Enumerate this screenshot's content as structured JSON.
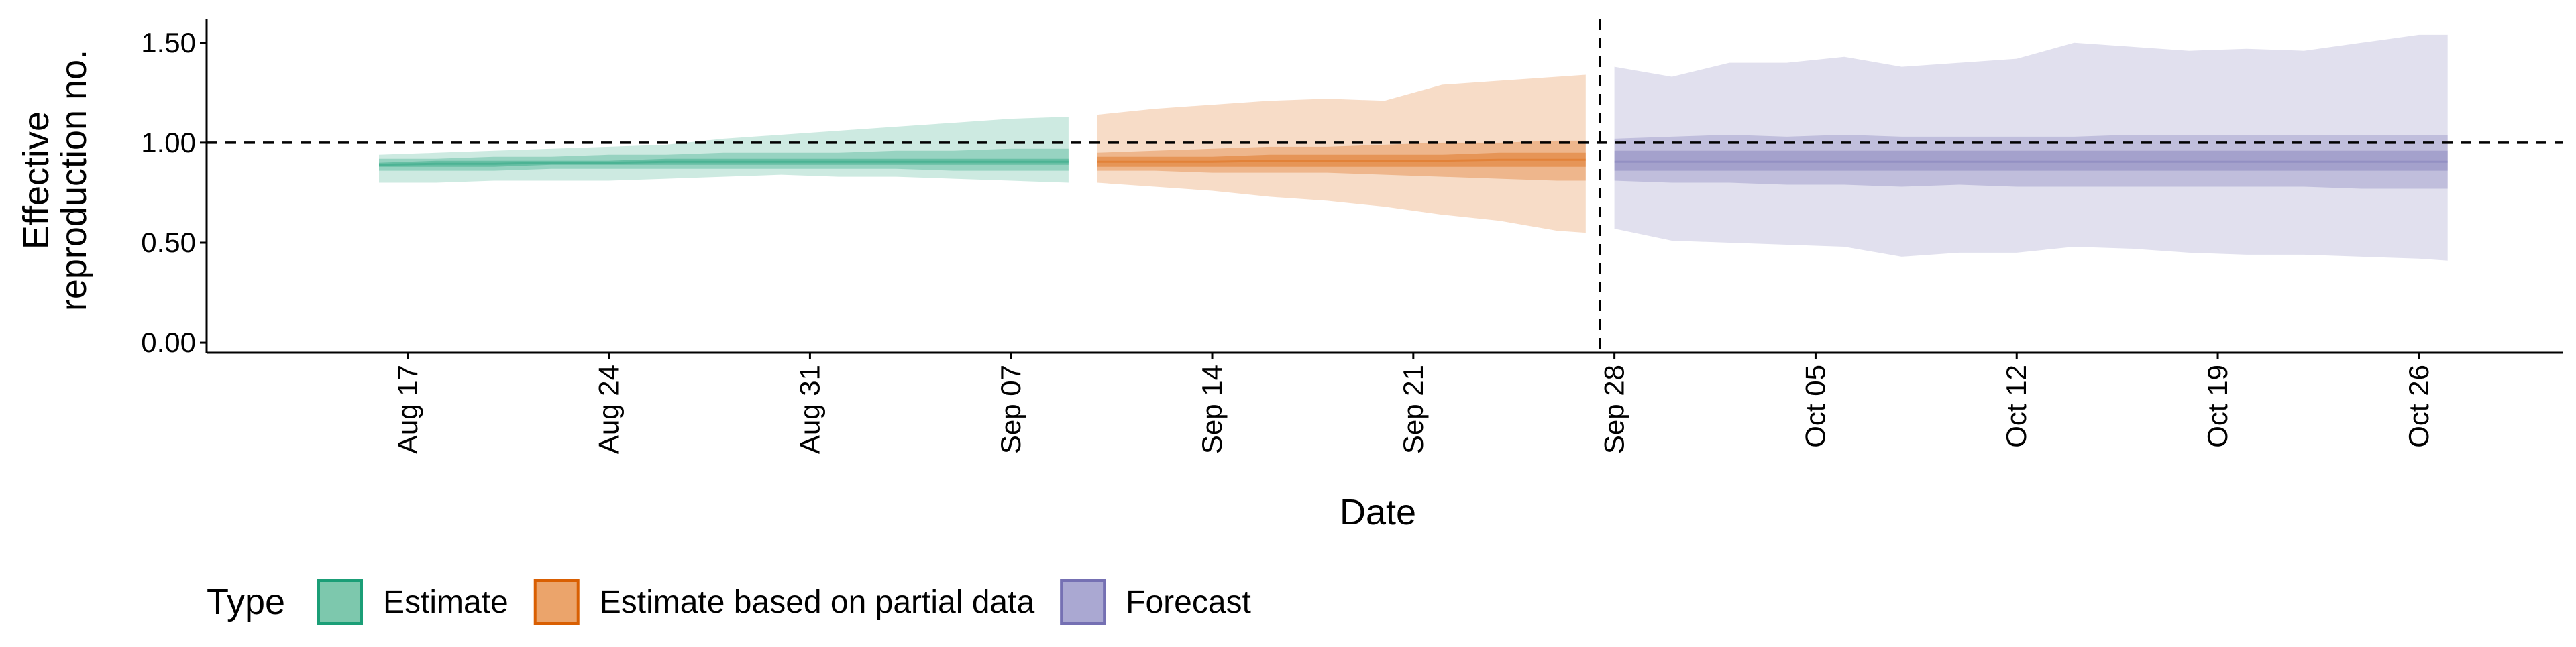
{
  "chart_data": {
    "type": "area",
    "title": "",
    "xlabel": "Date",
    "ylabel_lines": [
      "Effective",
      "reproduction no."
    ],
    "ylim": [
      -0.05,
      1.62
    ],
    "yticks": [
      {
        "value": 0.0,
        "label": "0.00"
      },
      {
        "value": 0.5,
        "label": "0.50"
      },
      {
        "value": 1.0,
        "label": "1.00"
      },
      {
        "value": 1.5,
        "label": "1.50"
      }
    ],
    "xlim": [
      "2020-08-10",
      "2020-10-31"
    ],
    "xticks": [
      {
        "date": "2020-08-17",
        "label": "Aug 17"
      },
      {
        "date": "2020-08-24",
        "label": "Aug 24"
      },
      {
        "date": "2020-08-31",
        "label": "Aug 31"
      },
      {
        "date": "2020-09-07",
        "label": "Sep 07"
      },
      {
        "date": "2020-09-14",
        "label": "Sep 14"
      },
      {
        "date": "2020-09-21",
        "label": "Sep 21"
      },
      {
        "date": "2020-09-28",
        "label": "Sep 28"
      },
      {
        "date": "2020-10-05",
        "label": "Oct 05"
      },
      {
        "date": "2020-10-12",
        "label": "Oct 12"
      },
      {
        "date": "2020-10-19",
        "label": "Oct 19"
      },
      {
        "date": "2020-10-26",
        "label": "Oct 26"
      }
    ],
    "hline": 1.0,
    "vline": "2020-09-27",
    "legend": {
      "title": "Type",
      "position": "bottom-left",
      "entries": [
        {
          "label": "Estimate",
          "fill": "#7dc8ad",
          "stroke": "#1b9e77"
        },
        {
          "label": "Estimate based on partial data",
          "fill": "#eba46b",
          "stroke": "#d95f02"
        },
        {
          "label": "Forecast",
          "fill": "#aaa8d2",
          "stroke": "#7570b3"
        }
      ]
    },
    "series": [
      {
        "name": "Estimate",
        "color": "#1b9e77",
        "x": [
          "2020-08-16",
          "2020-08-18",
          "2020-08-20",
          "2020-08-22",
          "2020-08-24",
          "2020-08-26",
          "2020-08-28",
          "2020-08-30",
          "2020-09-01",
          "2020-09-03",
          "2020-09-05",
          "2020-09-07",
          "2020-09-09"
        ],
        "median": [
          0.89,
          0.895,
          0.895,
          0.9,
          0.9,
          0.905,
          0.905,
          0.905,
          0.905,
          0.905,
          0.905,
          0.905,
          0.905
        ],
        "ci90": [
          [
            0.8,
            0.94
          ],
          [
            0.8,
            0.95
          ],
          [
            0.81,
            0.96
          ],
          [
            0.81,
            0.97
          ],
          [
            0.81,
            0.98
          ],
          [
            0.82,
            0.99
          ],
          [
            0.83,
            1.02
          ],
          [
            0.84,
            1.04
          ],
          [
            0.83,
            1.06
          ],
          [
            0.83,
            1.08
          ],
          [
            0.82,
            1.1
          ],
          [
            0.81,
            1.12
          ],
          [
            0.8,
            1.13
          ]
        ],
        "ci50": [
          [
            0.86,
            0.92
          ],
          [
            0.86,
            0.92
          ],
          [
            0.86,
            0.93
          ],
          [
            0.87,
            0.93
          ],
          [
            0.87,
            0.94
          ],
          [
            0.87,
            0.94
          ],
          [
            0.87,
            0.95
          ],
          [
            0.87,
            0.95
          ],
          [
            0.87,
            0.95
          ],
          [
            0.87,
            0.96
          ],
          [
            0.86,
            0.96
          ],
          [
            0.86,
            0.97
          ],
          [
            0.86,
            0.97
          ]
        ],
        "ci20": [
          [
            0.88,
            0.9
          ],
          [
            0.88,
            0.91
          ],
          [
            0.88,
            0.91
          ],
          [
            0.89,
            0.91
          ],
          [
            0.89,
            0.91
          ],
          [
            0.89,
            0.92
          ],
          [
            0.89,
            0.92
          ],
          [
            0.89,
            0.92
          ],
          [
            0.89,
            0.92
          ],
          [
            0.89,
            0.92
          ],
          [
            0.89,
            0.92
          ],
          [
            0.89,
            0.92
          ],
          [
            0.89,
            0.92
          ]
        ]
      },
      {
        "name": "Estimate based on partial data",
        "color": "#d95f02",
        "x": [
          "2020-09-10",
          "2020-09-12",
          "2020-09-14",
          "2020-09-16",
          "2020-09-18",
          "2020-09-20",
          "2020-09-22",
          "2020-09-24",
          "2020-09-26",
          "2020-09-27"
        ],
        "median": [
          0.905,
          0.905,
          0.905,
          0.91,
          0.91,
          0.91,
          0.91,
          0.915,
          0.915,
          0.915
        ],
        "ci90": [
          [
            0.8,
            1.14
          ],
          [
            0.78,
            1.17
          ],
          [
            0.76,
            1.19
          ],
          [
            0.73,
            1.21
          ],
          [
            0.71,
            1.22
          ],
          [
            0.68,
            1.21
          ],
          [
            0.64,
            1.29
          ],
          [
            0.61,
            1.31
          ],
          [
            0.56,
            1.33
          ],
          [
            0.55,
            1.34
          ]
        ],
        "ci50": [
          [
            0.86,
            0.95
          ],
          [
            0.86,
            0.96
          ],
          [
            0.85,
            0.97
          ],
          [
            0.85,
            0.98
          ],
          [
            0.85,
            0.98
          ],
          [
            0.84,
            0.99
          ],
          [
            0.83,
            1.0
          ],
          [
            0.82,
            1.0
          ],
          [
            0.81,
            1.01
          ],
          [
            0.81,
            1.01
          ]
        ],
        "ci20": [
          [
            0.88,
            0.93
          ],
          [
            0.88,
            0.93
          ],
          [
            0.88,
            0.93
          ],
          [
            0.88,
            0.94
          ],
          [
            0.88,
            0.94
          ],
          [
            0.88,
            0.94
          ],
          [
            0.88,
            0.94
          ],
          [
            0.88,
            0.95
          ],
          [
            0.88,
            0.95
          ],
          [
            0.88,
            0.95
          ]
        ]
      },
      {
        "name": "Forecast",
        "color": "#7570b3",
        "x": [
          "2020-09-28",
          "2020-09-30",
          "2020-10-02",
          "2020-10-04",
          "2020-10-06",
          "2020-10-08",
          "2020-10-10",
          "2020-10-12",
          "2020-10-14",
          "2020-10-16",
          "2020-10-18",
          "2020-10-20",
          "2020-10-22",
          "2020-10-24",
          "2020-10-26",
          "2020-10-27"
        ],
        "median": [
          0.905,
          0.905,
          0.905,
          0.905,
          0.905,
          0.905,
          0.905,
          0.905,
          0.905,
          0.905,
          0.905,
          0.905,
          0.905,
          0.905,
          0.905,
          0.905
        ],
        "ci90": [
          [
            0.57,
            1.38
          ],
          [
            0.51,
            1.33
          ],
          [
            0.5,
            1.4
          ],
          [
            0.49,
            1.4
          ],
          [
            0.48,
            1.43
          ],
          [
            0.43,
            1.38
          ],
          [
            0.45,
            1.4
          ],
          [
            0.45,
            1.42
          ],
          [
            0.48,
            1.5
          ],
          [
            0.47,
            1.48
          ],
          [
            0.45,
            1.46
          ],
          [
            0.44,
            1.47
          ],
          [
            0.44,
            1.46
          ],
          [
            0.43,
            1.5
          ],
          [
            0.42,
            1.54
          ],
          [
            0.41,
            1.54
          ]
        ],
        "ci50": [
          [
            0.81,
            1.02
          ],
          [
            0.8,
            1.03
          ],
          [
            0.8,
            1.04
          ],
          [
            0.79,
            1.03
          ],
          [
            0.79,
            1.04
          ],
          [
            0.78,
            1.03
          ],
          [
            0.79,
            1.03
          ],
          [
            0.78,
            1.03
          ],
          [
            0.78,
            1.03
          ],
          [
            0.78,
            1.04
          ],
          [
            0.78,
            1.04
          ],
          [
            0.78,
            1.04
          ],
          [
            0.78,
            1.04
          ],
          [
            0.77,
            1.04
          ],
          [
            0.77,
            1.04
          ],
          [
            0.77,
            1.04
          ]
        ],
        "ci20": [
          [
            0.86,
            0.96
          ],
          [
            0.86,
            0.96
          ],
          [
            0.86,
            0.96
          ],
          [
            0.86,
            0.96
          ],
          [
            0.86,
            0.96
          ],
          [
            0.86,
            0.96
          ],
          [
            0.86,
            0.96
          ],
          [
            0.86,
            0.96
          ],
          [
            0.86,
            0.96
          ],
          [
            0.86,
            0.96
          ],
          [
            0.86,
            0.96
          ],
          [
            0.86,
            0.96
          ],
          [
            0.86,
            0.96
          ],
          [
            0.86,
            0.96
          ],
          [
            0.86,
            0.96
          ],
          [
            0.86,
            0.96
          ]
        ]
      }
    ]
  }
}
